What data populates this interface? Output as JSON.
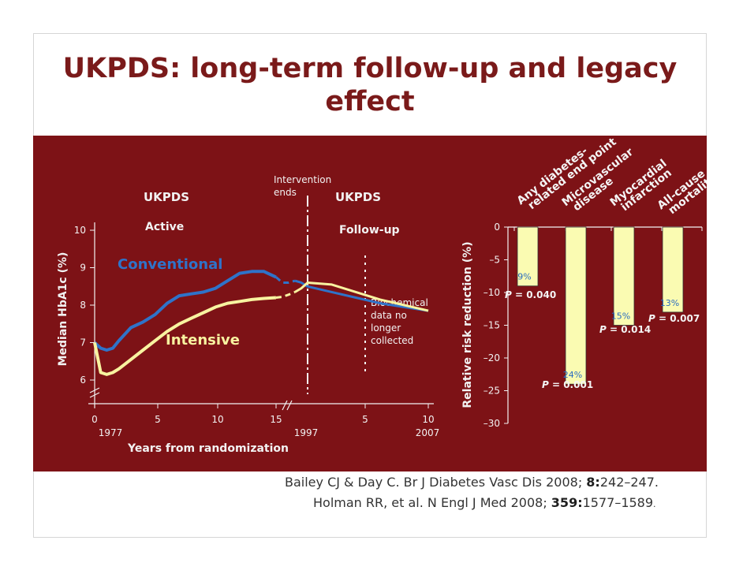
{
  "title": {
    "line1": "UKPDS: long-term follow-up and legacy",
    "line2": "effect"
  },
  "colors": {
    "background": "#7d1216",
    "title": "#7a1a1a",
    "conventional": "#2f73c9",
    "intensive": "#f8f3a0",
    "bar": "#fafbb2"
  },
  "chart_data": [
    {
      "type": "line",
      "ylabel": "Median HbA1c (%)",
      "xlabel": "Years from randomization",
      "ylim": [
        5.5,
        10
      ],
      "y_ticks": [
        "10",
        "9",
        "8",
        "7",
        "6"
      ],
      "x_ticks": [
        "0",
        "5",
        "10",
        "15",
        "5",
        "10"
      ],
      "x_year_labels": [
        "1977",
        "1997",
        "2007"
      ],
      "phase_labels": {
        "ukpds_active_1": "UKPDS",
        "ukpds_active_2": "Active",
        "intervention_1": "Intervention",
        "intervention_2": "ends",
        "ukpds_followup_1": "UKPDS",
        "ukpds_followup_2": "Follow-up"
      },
      "biochemical_note": [
        "Biochemical",
        "data no",
        "longer",
        "collected"
      ],
      "series": [
        {
          "name": "Conventional",
          "x": [
            0,
            0.5,
            1,
            1.5,
            2,
            3,
            4,
            5,
            6,
            7,
            8,
            9,
            10,
            11,
            12,
            13,
            14,
            15,
            16,
            17,
            18,
            19,
            20,
            21,
            22,
            23,
            24,
            25
          ],
          "values": [
            7.0,
            6.85,
            6.8,
            6.85,
            7.05,
            7.4,
            7.55,
            7.75,
            8.05,
            8.25,
            8.3,
            8.35,
            8.45,
            8.65,
            8.85,
            8.9,
            8.9,
            8.75,
            8.6,
            8.6,
            8.65,
            8.6,
            8.5,
            8.35,
            8.2,
            8.05,
            7.95,
            7.85
          ]
        },
        {
          "name": "Intensive",
          "x": [
            0,
            0.5,
            1,
            1.5,
            2,
            3,
            4,
            5,
            6,
            7,
            8,
            9,
            10,
            11,
            12,
            13,
            14,
            15,
            16,
            17,
            18,
            19,
            20,
            21,
            22,
            23,
            24,
            25
          ],
          "values": [
            7.0,
            6.2,
            6.15,
            6.2,
            6.3,
            6.55,
            6.8,
            7.05,
            7.3,
            7.5,
            7.65,
            7.8,
            7.95,
            8.05,
            8.1,
            8.15,
            8.18,
            8.2,
            8.22,
            8.28,
            8.35,
            8.45,
            8.6,
            8.55,
            8.35,
            8.15,
            8.0,
            7.85
          ]
        }
      ]
    },
    {
      "type": "bar",
      "ylabel": "Relative risk reduction (%)",
      "ylim": [
        -30,
        0
      ],
      "y_ticks": [
        "0",
        "–5",
        "–10",
        "–15",
        "–20",
        "–25",
        "–30"
      ],
      "categories": [
        [
          "Any diabetes-",
          "related end point"
        ],
        [
          "Microvascular",
          "disease"
        ],
        [
          "Myocardial",
          "infarction"
        ],
        [
          "All-cause",
          "mortality"
        ]
      ],
      "values": [
        -9,
        -24,
        -15,
        -13
      ],
      "value_labels": [
        "9%",
        "24%",
        "15%",
        "13%"
      ],
      "p_values": [
        "0.040",
        "0.001",
        "0.014",
        "0.007"
      ],
      "p_prefix": "P",
      "p_equals": " = "
    }
  ],
  "references": {
    "ref1_text": "Bailey CJ & Day C. Br J Diabetes Vasc Dis 2008; ",
    "ref1_vol": "8:",
    "ref1_pages": "242–247.",
    "ref2_text": "Holman RR, et al. N Engl J Med 2008; ",
    "ref2_vol": "359:",
    "ref2_pages": "1577–1589",
    "ref2_end": "."
  }
}
